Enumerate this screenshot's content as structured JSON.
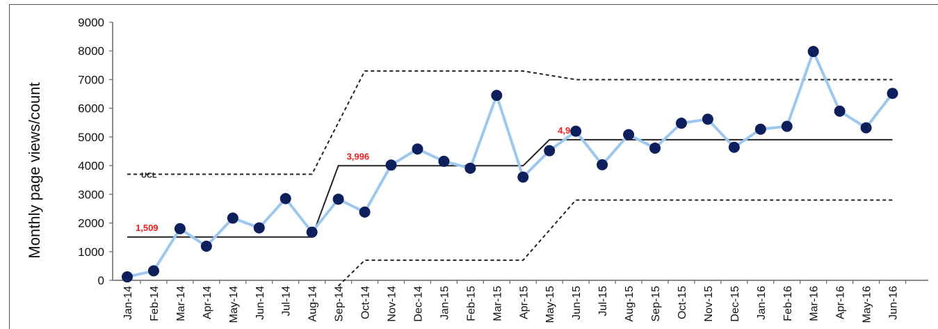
{
  "chart_data": {
    "type": "line",
    "title": "",
    "xlabel": "",
    "ylabel": "Monthly page views/count",
    "ylim": [
      0,
      9000
    ],
    "yticks": [
      "0",
      "1000",
      "2000",
      "3000",
      "4000",
      "5000",
      "6000",
      "7000",
      "8000",
      "9000"
    ],
    "categories": [
      "Jan-14",
      "Feb-14",
      "Mar-14",
      "Apr-14",
      "May-14",
      "Jun-14",
      "Jul-14",
      "Aug-14",
      "Sep-14",
      "Oct-14",
      "Nov-14",
      "Dec-14",
      "Jan-15",
      "Feb-15",
      "Mar-15",
      "Apr-15",
      "May-15",
      "Jun-15",
      "Jul-15",
      "Aug-15",
      "Sep-15",
      "Oct-15",
      "Nov-15",
      "Dec-15",
      "Jan-16",
      "Feb-16",
      "Mar-16",
      "Apr-16",
      "May-16",
      "Jun-16"
    ],
    "series": [
      {
        "values": [
          120,
          330,
          1800,
          1190,
          2170,
          1830,
          2850,
          1680,
          2830,
          2380,
          4020,
          4580,
          4150,
          3910,
          6450,
          3600,
          4520,
          5200,
          4030,
          5080,
          4610,
          5480,
          5620,
          4640,
          5270,
          5370,
          7980,
          5900,
          5320,
          6520
        ],
        "color": "#9cc8f0",
        "marker_color": "#0d1f5c"
      }
    ],
    "center_line": {
      "color": "#222222",
      "segments": [
        {
          "from": "Jan-14",
          "to": "Aug-14",
          "value": 1509,
          "label": "1,509"
        },
        {
          "from": "Sep-14",
          "to": "Apr-15",
          "value": 3996,
          "label": "3,996"
        },
        {
          "from": "May-15",
          "to": "Jun-16",
          "value": 4902,
          "label": "4,902"
        }
      ]
    },
    "ucl": {
      "label": "UCL",
      "style": "dashed",
      "segments": [
        {
          "from": "Jan-14",
          "to": "Aug-14",
          "value": 3700
        },
        {
          "from": "Oct-14",
          "to": "Apr-15",
          "value": 7300
        },
        {
          "from": "Jun-15",
          "to": "Jun-16",
          "value": 7000
        }
      ]
    },
    "lcl": {
      "style": "dashed",
      "segments": [
        {
          "from": "Oct-14",
          "to": "Apr-15",
          "value": 700
        },
        {
          "from": "Jun-15",
          "to": "Jun-16",
          "value": 2800
        }
      ]
    },
    "center_label_color": "#ff1a1a",
    "grid": false
  }
}
